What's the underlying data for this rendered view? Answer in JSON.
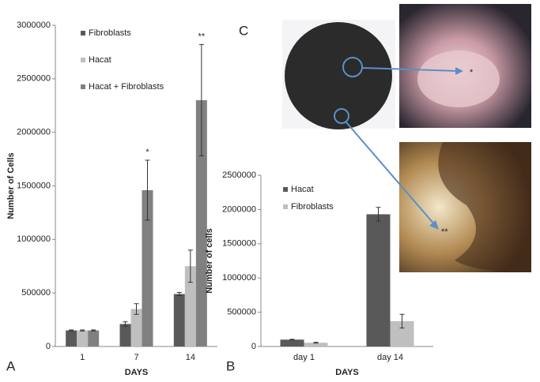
{
  "chart_data": [
    {
      "type": "bar",
      "y_label": "Number of Cells",
      "x_label": "DAYS",
      "categories": [
        "1",
        "7",
        "14"
      ],
      "series": [
        {
          "name": "Fibroblasts",
          "color": "#595959",
          "values": [
            150000,
            210000,
            490000
          ],
          "errors": [
            5000,
            20000,
            15000
          ]
        },
        {
          "name": "Hacat",
          "color": "#bfbfbf",
          "values": [
            150000,
            350000,
            750000
          ],
          "errors": [
            5000,
            50000,
            150000
          ]
        },
        {
          "name": "Hacat + Fibroblasts",
          "color": "#808080",
          "values": [
            150000,
            1460000,
            2300000
          ],
          "errors": [
            5000,
            280000,
            520000
          ]
        }
      ],
      "annotations": [
        "*",
        "**"
      ],
      "ylim": [
        0,
        3000000
      ],
      "yticks": [
        0,
        500000,
        1000000,
        1500000,
        2000000,
        2500000,
        3000000
      ],
      "grid": false
    },
    {
      "type": "bar",
      "y_label": "Number of cells",
      "x_label": "DAYS",
      "categories": [
        "day 1",
        "day 14"
      ],
      "series": [
        {
          "name": "Hacat",
          "color": "#595959",
          "values": [
            100000,
            1930000
          ],
          "errors": [
            5000,
            100000
          ]
        },
        {
          "name": "Fibroblasts",
          "color": "#bfbfbf",
          "values": [
            55000,
            370000
          ],
          "errors": [
            5000,
            100000
          ]
        }
      ],
      "ylim": [
        0,
        2500000
      ],
      "yticks": [
        0,
        500000,
        1000000,
        1500000,
        2000000,
        2500000
      ],
      "grid": false
    }
  ],
  "panel_labels": [
    "A",
    "B",
    "C"
  ],
  "photo_annotations": [
    "*",
    "**"
  ]
}
